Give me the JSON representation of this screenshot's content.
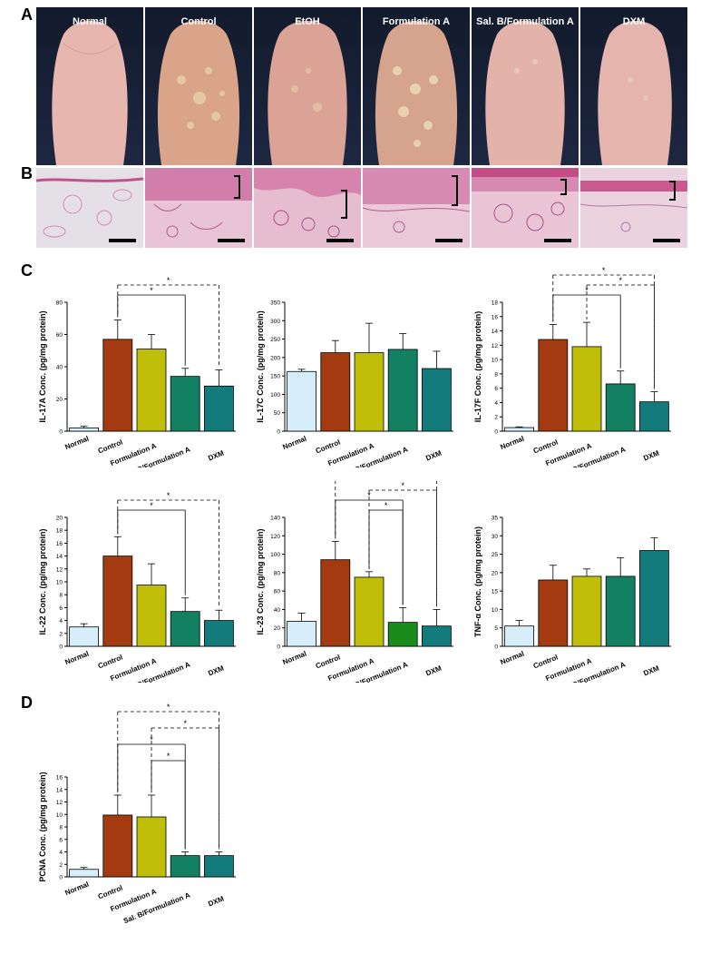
{
  "panel_labels": {
    "a": "A",
    "b": "B",
    "c": "C",
    "d": "D"
  },
  "photo_groups": [
    "Normal",
    "Control",
    "EtOH",
    "Formulation A",
    "Sal. B/Formulation A",
    "DXM"
  ],
  "colors": {
    "normal": "#d6eefa",
    "control": "#a33a10",
    "formulation_a": "#bfbf0a",
    "sal_b": "#138062",
    "dxm": "#137b7c",
    "sal_b_il23": "#1b8c1b"
  },
  "chart_data": [
    {
      "id": "il17a",
      "type": "bar",
      "ylabel": "IL-17A Conc. (pg/mg protein)",
      "categories": [
        "Normal",
        "Control",
        "Formulation A",
        "Sal. B/Formulation A",
        "DXM"
      ],
      "values": [
        2,
        57,
        51,
        34,
        28
      ],
      "errors": [
        1,
        12,
        9,
        5,
        10
      ],
      "ylim": [
        0,
        80
      ],
      "yticks": [
        0,
        20,
        40,
        60,
        80
      ],
      "significance": [
        {
          "from": 1,
          "to": 3,
          "label": "*",
          "style": "solid",
          "level": 0
        },
        {
          "from": 1,
          "to": 4,
          "label": "*",
          "style": "dashed",
          "level": 1
        }
      ]
    },
    {
      "id": "il17c",
      "type": "bar",
      "ylabel": "IL-17C Conc. (pg/mg protein)",
      "categories": [
        "Normal",
        "Control",
        "Formulation A",
        "Sal. B/Formulation A",
        "DXM"
      ],
      "values": [
        162,
        213,
        213,
        222,
        170
      ],
      "errors": [
        6,
        33,
        80,
        43,
        47
      ],
      "ylim": [
        0,
        350
      ],
      "yticks": [
        0,
        50,
        100,
        150,
        200,
        250,
        300,
        350
      ],
      "significance": []
    },
    {
      "id": "il17f",
      "type": "bar",
      "ylabel": "IL-17F Conc. (pg/mg protein)",
      "categories": [
        "Normal",
        "Control",
        "Formulation A",
        "Sal. B/Formulation A",
        "DXM"
      ],
      "values": [
        0.5,
        12.8,
        11.8,
        6.6,
        4.1
      ],
      "errors": [
        0.1,
        2.1,
        3.4,
        1.8,
        1.4
      ],
      "ylim": [
        0,
        18
      ],
      "yticks": [
        0,
        2,
        4,
        6,
        8,
        10,
        12,
        14,
        16,
        18
      ],
      "significance": [
        {
          "from": 1,
          "to": 3,
          "label": "*",
          "style": "solid",
          "level": 0
        },
        {
          "from": 2,
          "to": 4,
          "label": "*",
          "style": "dashed",
          "level": 1
        },
        {
          "from": 1,
          "to": 4,
          "label": "*",
          "style": "dashed",
          "level": 2
        }
      ]
    },
    {
      "id": "il22",
      "type": "bar",
      "ylabel": "IL-22 Conc. (pg/mg protein)",
      "categories": [
        "Normal",
        "Control",
        "Formulation A",
        "Sal. B/Formulation A",
        "DXM"
      ],
      "values": [
        3,
        14,
        9.5,
        5.4,
        4
      ],
      "errors": [
        0.5,
        3,
        3.3,
        2.1,
        1.6
      ],
      "ylim": [
        0,
        20
      ],
      "yticks": [
        0,
        2,
        4,
        6,
        8,
        10,
        12,
        14,
        16,
        18,
        20
      ],
      "significance": [
        {
          "from": 1,
          "to": 3,
          "label": "*",
          "style": "solid",
          "level": 0
        },
        {
          "from": 1,
          "to": 4,
          "label": "*",
          "style": "dashed",
          "level": 1
        }
      ]
    },
    {
      "id": "il23",
      "type": "bar",
      "ylabel": "IL-23 Conc. (pg/mg protein)",
      "categories": [
        "Normal",
        "Control",
        "Formulation A",
        "Sal. B/Formulation A",
        "DXM"
      ],
      "values": [
        27,
        94,
        75,
        26,
        22
      ],
      "errors": [
        9,
        20,
        6,
        16,
        18
      ],
      "ylim": [
        0,
        140
      ],
      "yticks": [
        0,
        20,
        40,
        60,
        80,
        100,
        120,
        140
      ],
      "significance": [
        {
          "from": 2,
          "to": 3,
          "label": "*",
          "style": "solid",
          "level": 0
        },
        {
          "from": 1,
          "to": 3,
          "label": "*",
          "style": "solid",
          "level": 1
        },
        {
          "from": 2,
          "to": 4,
          "label": "*",
          "style": "dashed",
          "level": 2
        },
        {
          "from": 1,
          "to": 4,
          "label": "*",
          "style": "dashed",
          "level": 3
        }
      ]
    },
    {
      "id": "tnfa",
      "type": "bar",
      "ylabel": "TNF-α Conc. (pg/mg protein)",
      "categories": [
        "Normal",
        "Control",
        "Formulation A",
        "Sal. B/Formulation A",
        "DXM"
      ],
      "values": [
        5.5,
        18,
        19,
        19,
        26
      ],
      "errors": [
        1.5,
        4,
        2,
        5,
        3.5
      ],
      "ylim": [
        0,
        35
      ],
      "yticks": [
        0,
        5,
        10,
        15,
        20,
        25,
        30,
        35
      ],
      "significance": []
    },
    {
      "id": "pcna",
      "type": "bar",
      "ylabel": "PCNA Conc. (pg/mg protein)",
      "categories": [
        "Normal",
        "Control",
        "Formulation A",
        "Sal. B/Formulation A",
        "DXM"
      ],
      "values": [
        1.2,
        9.9,
        9.6,
        3.4,
        3.4
      ],
      "errors": [
        0.3,
        3.2,
        3.5,
        0.6,
        0.6
      ],
      "ylim": [
        0,
        16
      ],
      "yticks": [
        0,
        2,
        4,
        6,
        8,
        10,
        12,
        14,
        16
      ],
      "significance": [
        {
          "from": 2,
          "to": 3,
          "label": "*",
          "style": "solid",
          "level": 0
        },
        {
          "from": 1,
          "to": 3,
          "label": "*",
          "style": "solid",
          "level": 1
        },
        {
          "from": 2,
          "to": 4,
          "label": "*",
          "style": "dashed",
          "level": 2
        },
        {
          "from": 1,
          "to": 4,
          "label": "*",
          "style": "dashed",
          "level": 3
        }
      ]
    }
  ]
}
